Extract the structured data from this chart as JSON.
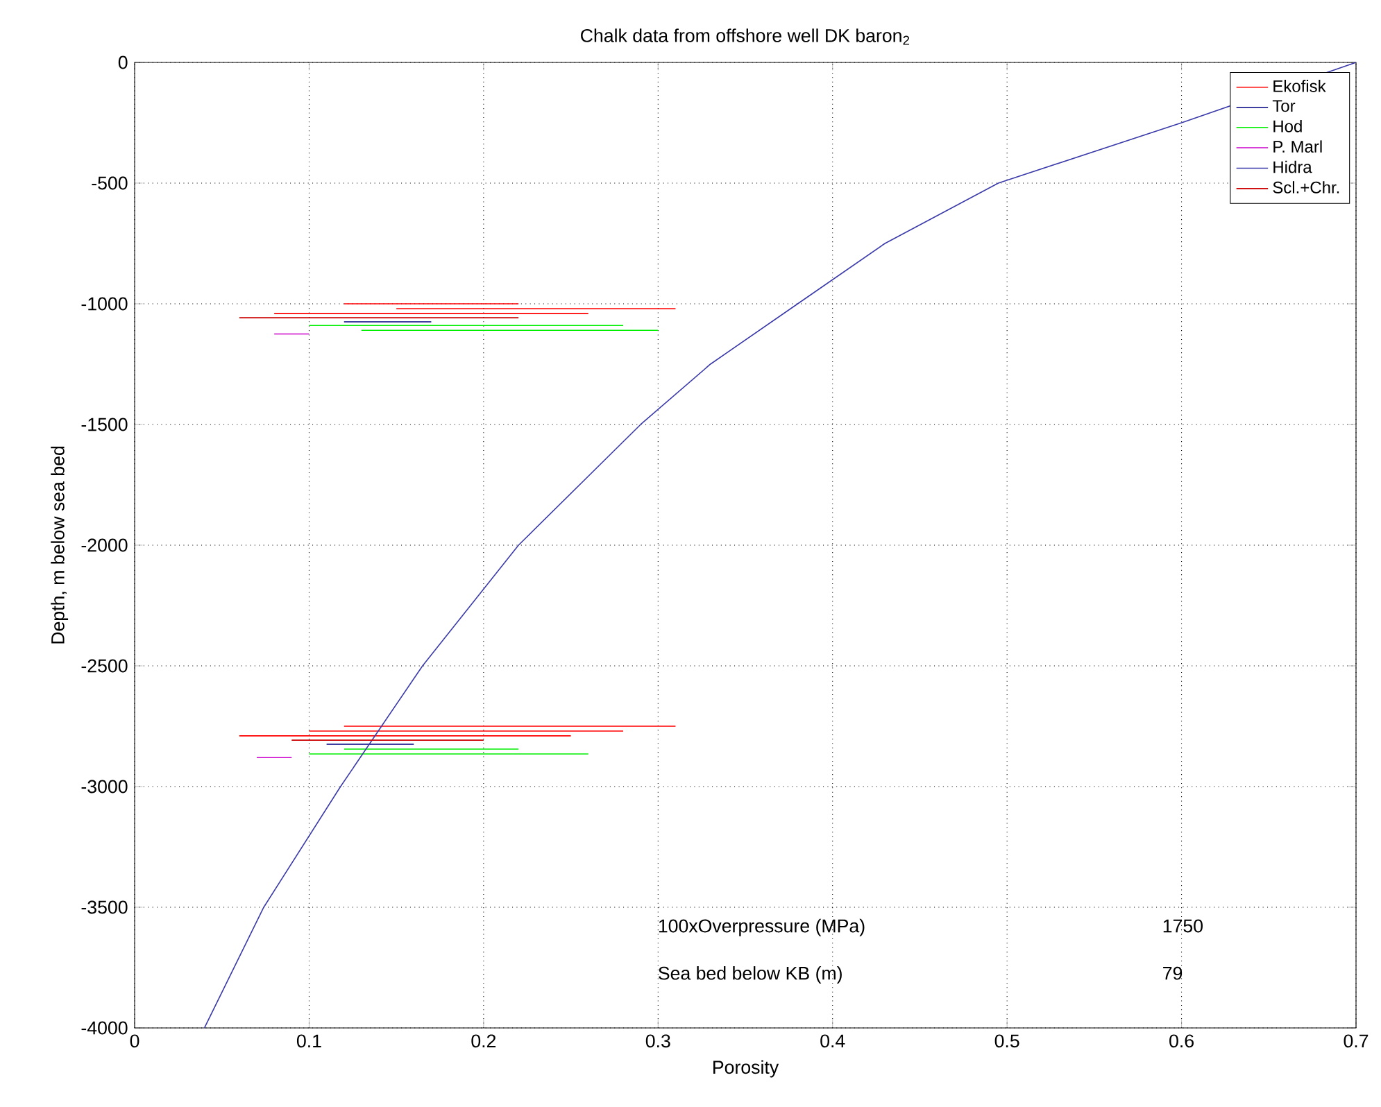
{
  "chart_data": {
    "type": "line",
    "title": "Chalk data from offshore well DK baron$_{2}$",
    "xlabel": "Porosity",
    "ylabel": "Depth, m below sea bed",
    "xlim": [
      0,
      0.7
    ],
    "ylim": [
      -4000,
      0
    ],
    "xticks": [
      0,
      0.1,
      0.2,
      0.3,
      0.4,
      0.5,
      0.6,
      0.7
    ],
    "yticks": [
      -4000,
      -3500,
      -3000,
      -2500,
      -2000,
      -1500,
      -1000,
      -500,
      0
    ],
    "grid": true,
    "legend": "top right",
    "series": [
      {
        "name": "Ekofisk",
        "color": "#ff0000",
        "x": [
          0.12,
          0.22,
          null,
          0.15,
          0.31,
          null,
          0.08,
          0.26,
          null,
          0.12,
          0.31,
          null,
          0.1,
          0.28,
          null,
          0.06,
          0.25
        ],
        "values": [
          -1000,
          -1000,
          null,
          -1020,
          -1020,
          null,
          -1040,
          -1040,
          null,
          -2750,
          -2750,
          null,
          -2770,
          -2770,
          null,
          -2790,
          -2790
        ]
      },
      {
        "name": "Tor",
        "color": "#000080",
        "x": [
          0.12,
          0.17,
          null,
          0.11,
          0.16
        ],
        "values": [
          -1075,
          -1075,
          null,
          -2825,
          -2825
        ]
      },
      {
        "name": "Hod",
        "color": "#00ee00",
        "x": [
          0.1,
          0.28,
          null,
          0.13,
          0.3,
          null,
          0.12,
          0.22,
          null,
          0.1,
          0.26
        ],
        "values": [
          -1090,
          -1090,
          null,
          -1110,
          -1110,
          null,
          -2845,
          -2845,
          null,
          -2865,
          -2865
        ]
      },
      {
        "name": "P. Marl",
        "color": "#cc00cc",
        "x": [
          0.08,
          0.1,
          null,
          0.07,
          0.09
        ],
        "values": [
          -1125,
          -1125,
          null,
          -2880,
          -2880
        ]
      },
      {
        "name": "Hidra",
        "color": "#3a3aaa",
        "x": [
          0.7,
          0.6,
          0.495,
          0.43,
          0.38,
          0.33,
          0.29,
          0.22,
          0.165,
          0.118,
          0.074,
          0.04
        ],
        "values": [
          0,
          -250,
          -500,
          -750,
          -1000,
          -1250,
          -1500,
          -2000,
          -2500,
          -3000,
          -3500,
          -4000
        ]
      },
      {
        "name": "Scl.+Chr.",
        "color": "#cc0000",
        "x": [
          0.06,
          0.22,
          null,
          0.09,
          0.2
        ],
        "values": [
          -1058,
          -1058,
          null,
          -2808,
          -2808
        ]
      }
    ],
    "annotations": [
      "100xOverpressure (MPa)",
      "1750",
      "Sea bed below KB (m)",
      "79"
    ]
  }
}
